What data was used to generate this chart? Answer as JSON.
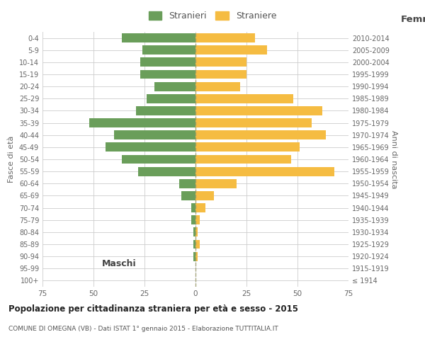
{
  "age_groups": [
    "100+",
    "95-99",
    "90-94",
    "85-89",
    "80-84",
    "75-79",
    "70-74",
    "65-69",
    "60-64",
    "55-59",
    "50-54",
    "45-49",
    "40-44",
    "35-39",
    "30-34",
    "25-29",
    "20-24",
    "15-19",
    "10-14",
    "5-9",
    "0-4"
  ],
  "birth_years": [
    "≤ 1914",
    "1915-1919",
    "1920-1924",
    "1925-1929",
    "1930-1934",
    "1935-1939",
    "1940-1944",
    "1945-1949",
    "1950-1954",
    "1955-1959",
    "1960-1964",
    "1965-1969",
    "1970-1974",
    "1975-1979",
    "1980-1984",
    "1985-1989",
    "1990-1994",
    "1995-1999",
    "2000-2004",
    "2005-2009",
    "2010-2014"
  ],
  "maschi": [
    0,
    0,
    1,
    1,
    1,
    2,
    2,
    7,
    8,
    28,
    36,
    44,
    40,
    52,
    29,
    24,
    20,
    27,
    27,
    26,
    36
  ],
  "femmine": [
    0,
    0,
    1,
    2,
    1,
    2,
    5,
    9,
    20,
    68,
    47,
    51,
    64,
    57,
    62,
    48,
    22,
    25,
    25,
    35,
    29
  ],
  "maschi_color": "#6a9e5a",
  "femmine_color": "#f5bc42",
  "background_color": "#ffffff",
  "grid_color": "#cccccc",
  "title": "Popolazione per cittadinanza straniera per età e sesso - 2015",
  "subtitle": "COMUNE DI OMEGNA (VB) - Dati ISTAT 1° gennaio 2015 - Elaborazione TUTTITALIA.IT",
  "left_label": "Maschi",
  "right_label": "Femmine",
  "y_left_label": "Fasce di età",
  "y_right_label": "Anni di nascita",
  "legend_maschi": "Stranieri",
  "legend_femmine": "Straniere",
  "xlim": 75,
  "bar_height": 0.75
}
